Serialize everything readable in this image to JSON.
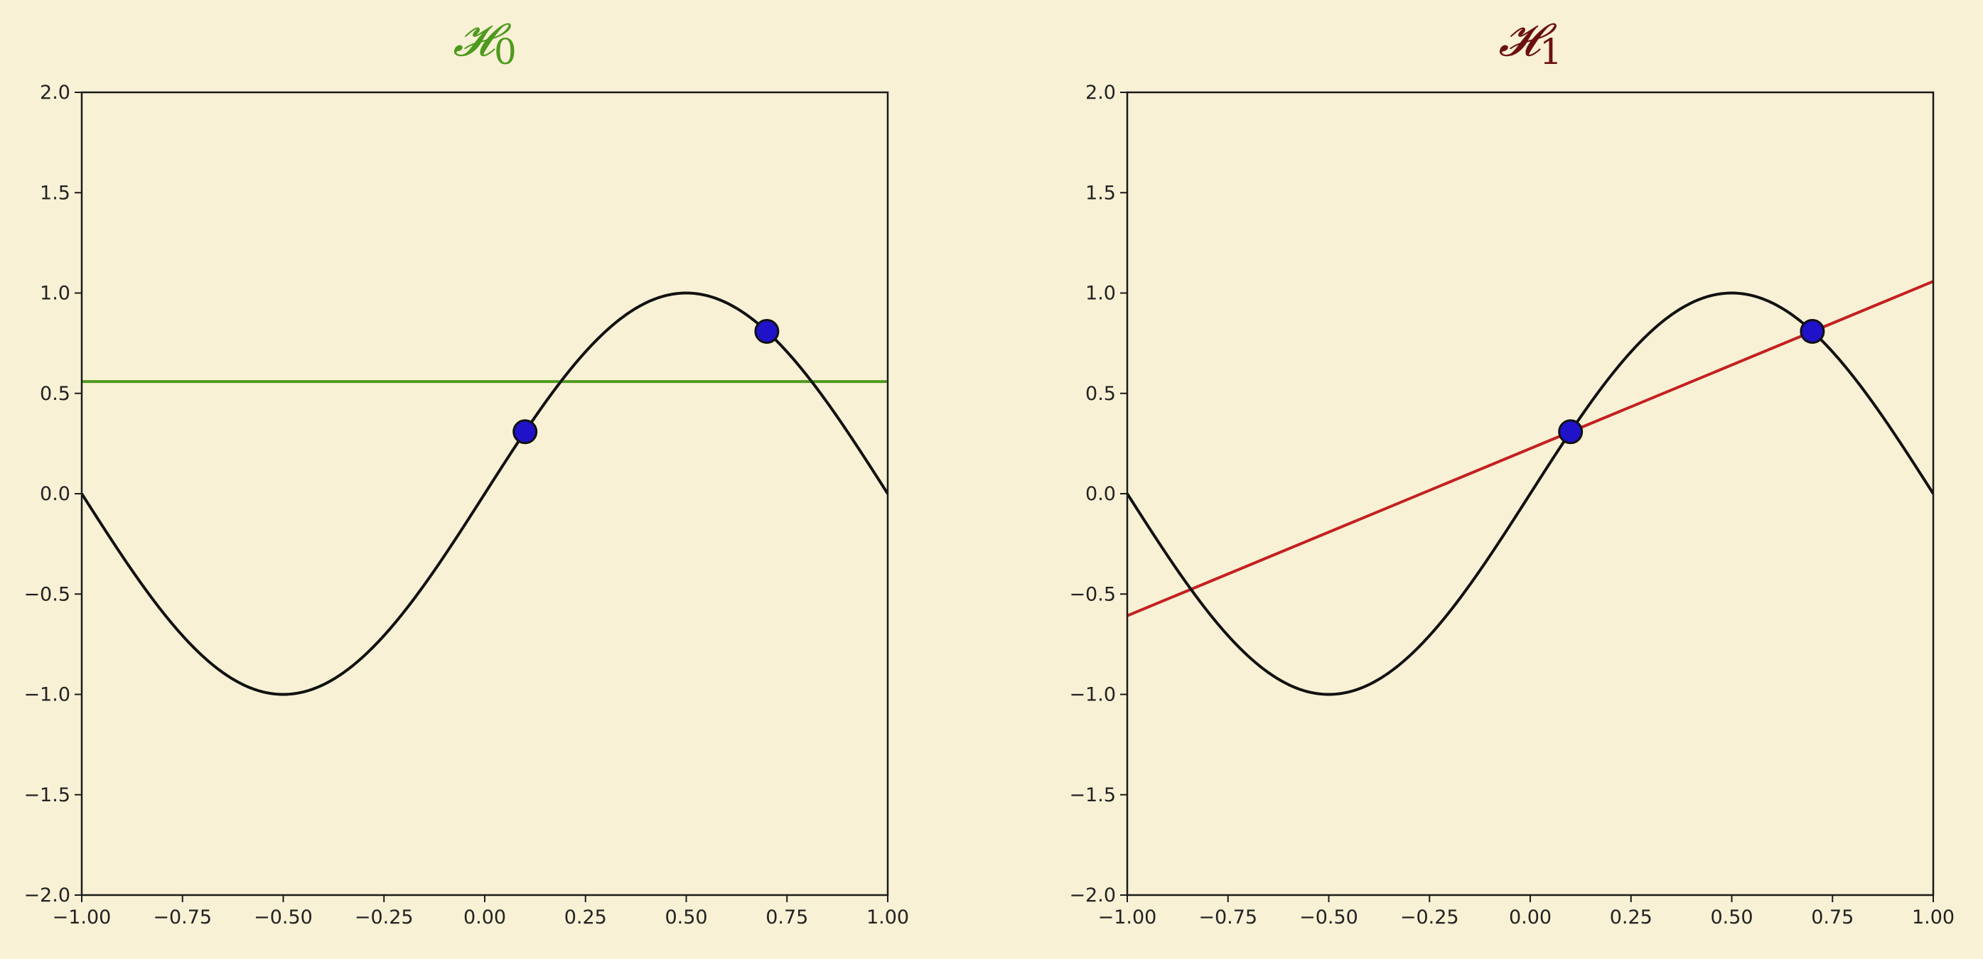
{
  "colors": {
    "background": "#f8f1d5",
    "curve": "#111111",
    "point_fill": "#1f12c8",
    "point_edge": "#111111"
  },
  "chart_data": [
    {
      "type": "line",
      "title": "𝓗",
      "title_subscript": "0",
      "title_color": "#4e9a1e",
      "xlim": [
        -1.0,
        1.0
      ],
      "ylim": [
        -2.0,
        2.0
      ],
      "xticks": [
        "−1.00",
        "−0.75",
        "−0.50",
        "−0.25",
        "0.00",
        "0.25",
        "0.50",
        "0.75",
        "1.00"
      ],
      "yticks": [
        "−2.0",
        "−1.5",
        "−1.0",
        "−0.5",
        "0.0",
        "0.5",
        "1.0",
        "1.5",
        "2.0"
      ],
      "grid": false,
      "target_function": "sin(pi*x)",
      "points": [
        {
          "x": 0.1,
          "y": 0.309
        },
        {
          "x": 0.7,
          "y": 0.809
        }
      ],
      "hypothesis": {
        "kind": "constant",
        "color": "#4e9a1e",
        "x": [
          -1.0,
          1.0
        ],
        "y": [
          0.559,
          0.559
        ]
      }
    },
    {
      "type": "line",
      "title": "𝓗",
      "title_subscript": "1",
      "title_color": "#6b1010",
      "xlim": [
        -1.0,
        1.0
      ],
      "ylim": [
        -2.0,
        2.0
      ],
      "xticks": [
        "−1.00",
        "−0.75",
        "−0.50",
        "−0.25",
        "0.00",
        "0.25",
        "0.50",
        "0.75",
        "1.00"
      ],
      "yticks": [
        "−2.0",
        "−1.5",
        "−1.0",
        "−0.5",
        "0.0",
        "0.5",
        "1.0",
        "1.5",
        "2.0"
      ],
      "grid": false,
      "target_function": "sin(pi*x)",
      "points": [
        {
          "x": 0.1,
          "y": 0.309
        },
        {
          "x": 0.7,
          "y": 0.809
        }
      ],
      "hypothesis": {
        "kind": "linear",
        "color": "#c42020",
        "x": [
          -1.0,
          1.0
        ],
        "y": [
          -0.608,
          1.058
        ]
      }
    }
  ]
}
